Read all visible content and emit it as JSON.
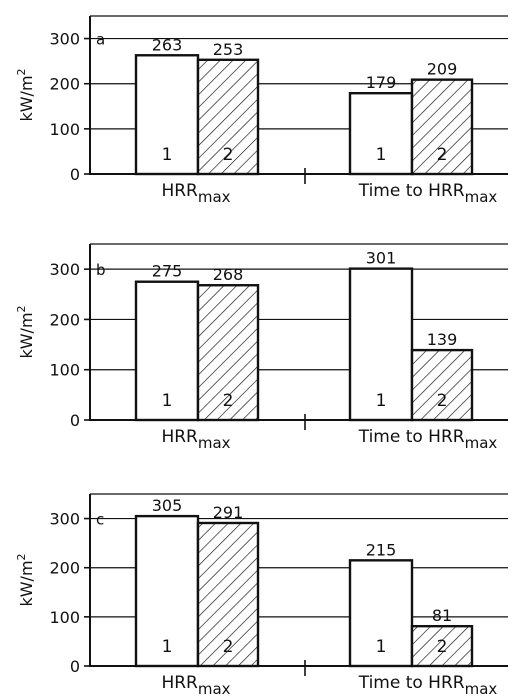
{
  "chart_data": [
    {
      "type": "bar",
      "panel_label": "a",
      "categories": [
        {
          "text": "HRR",
          "sub": "max"
        },
        {
          "text": "Time to HRR",
          "sub": "max"
        }
      ],
      "series_ids": [
        "1",
        "2"
      ],
      "values": [
        [
          263,
          253
        ],
        [
          179,
          209
        ]
      ],
      "value_labels": [
        [
          "263",
          "253"
        ],
        [
          "179",
          "209"
        ]
      ],
      "ylabel": {
        "text": "kW/m",
        "sup": "2"
      },
      "yticks": [
        "0",
        "100",
        "200",
        "300"
      ],
      "ylim": [
        0,
        350
      ],
      "grid": true,
      "hatch_series": "2"
    },
    {
      "type": "bar",
      "panel_label": "b",
      "categories": [
        {
          "text": "HRR",
          "sub": "max"
        },
        {
          "text": "Time to HRR",
          "sub": "max"
        }
      ],
      "series_ids": [
        "1",
        "2"
      ],
      "values": [
        [
          275,
          268
        ],
        [
          301,
          139
        ]
      ],
      "value_labels": [
        [
          "275",
          "268"
        ],
        [
          "301",
          "139"
        ]
      ],
      "ylabel": {
        "text": "kW/m",
        "sup": "2"
      },
      "yticks": [
        "0",
        "100",
        "200",
        "300"
      ],
      "ylim": [
        0,
        350
      ],
      "grid": true,
      "hatch_series": "2"
    },
    {
      "type": "bar",
      "panel_label": "c",
      "categories": [
        {
          "text": "HRR",
          "sub": "max"
        },
        {
          "text": "Time to HRR",
          "sub": "max"
        }
      ],
      "series_ids": [
        "1",
        "2"
      ],
      "values": [
        [
          305,
          291
        ],
        [
          215,
          81
        ]
      ],
      "value_labels": [
        [
          "305",
          "291"
        ],
        [
          "215",
          "81"
        ]
      ],
      "ylabel": {
        "text": "kW/m",
        "sup": "2"
      },
      "yticks": [
        "0",
        "100",
        "200",
        "300"
      ],
      "ylim": [
        0,
        350
      ],
      "grid": true,
      "hatch_series": "2"
    }
  ]
}
